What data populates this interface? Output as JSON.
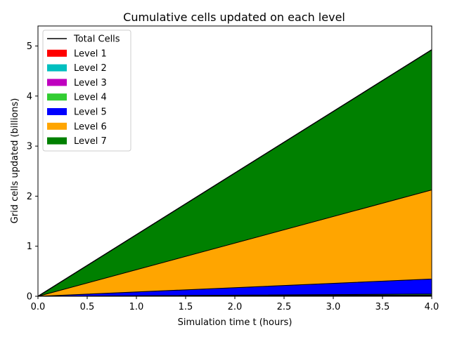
{
  "chart_data": {
    "type": "area",
    "stacked": true,
    "title": "Cumulative cells updated on each level",
    "xlabel": "Simulation time t (hours)",
    "ylabel": "Grid cells updated (billions)",
    "xlim": [
      0,
      4.0
    ],
    "ylim": [
      0,
      5.4
    ],
    "xticks": [
      "0.0",
      "0.5",
      "1.0",
      "1.5",
      "2.0",
      "2.5",
      "3.0",
      "3.5",
      "4.0"
    ],
    "yticks": [
      "0",
      "1",
      "2",
      "3",
      "4",
      "5"
    ],
    "xtick_values": [
      0,
      0.5,
      1.0,
      1.5,
      2.0,
      2.5,
      3.0,
      3.5,
      4.0
    ],
    "ytick_values": [
      0,
      1,
      2,
      3,
      4,
      5
    ],
    "grid": false,
    "legend_position": "top-left",
    "x": [
      0,
      4.0
    ],
    "series": [
      {
        "name": "Level 1",
        "color": "#ff0000",
        "values": [
          0,
          0.005
        ]
      },
      {
        "name": "Level 2",
        "color": "#00bfbf",
        "values": [
          0,
          0.008
        ]
      },
      {
        "name": "Level 3",
        "color": "#bf00bf",
        "values": [
          0,
          0.012
        ]
      },
      {
        "name": "Level 4",
        "color": "#32cd32",
        "values": [
          0,
          0.02
        ]
      },
      {
        "name": "Level 5",
        "color": "#0000ff",
        "values": [
          0,
          0.3
        ]
      },
      {
        "name": "Level 6",
        "color": "#ffa500",
        "values": [
          0,
          1.78
        ]
      },
      {
        "name": "Level 7",
        "color": "#008000",
        "values": [
          0,
          2.8
        ]
      }
    ],
    "total": {
      "name": "Total Cells",
      "color": "#000000",
      "values": [
        0,
        4.925
      ]
    }
  }
}
